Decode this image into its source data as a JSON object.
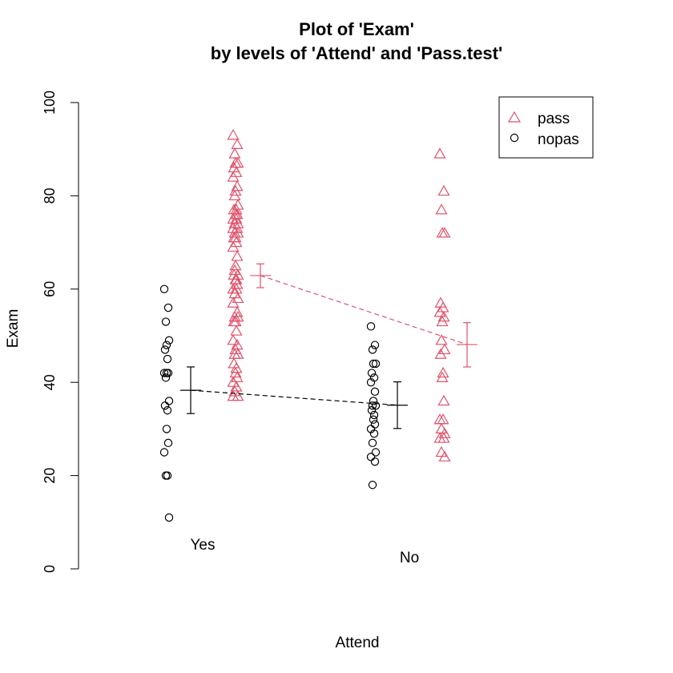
{
  "chart_data": {
    "type": "scatter",
    "title_line1": "Plot of 'Exam'",
    "title_line2": "by levels of 'Attend' and 'Pass.test'",
    "xlabel": "Attend",
    "ylabel": "Exam",
    "ylim": [
      0,
      100
    ],
    "yticks": [
      "0",
      "20",
      "40",
      "60",
      "80",
      "100"
    ],
    "categories": [
      "Yes",
      "No"
    ],
    "series": [
      {
        "name": "pass",
        "color": "#DF536B",
        "marker": "triangle",
        "line": "dashed",
        "groups": {
          "Yes": {
            "mean": 62.9,
            "ci": [
              60.3,
              65.4
            ],
            "points": [
              93,
              91,
              89,
              87,
              87,
              86,
              85,
              84,
              82,
              81,
              80,
              78,
              77,
              77,
              76,
              76,
              75,
              75,
              74,
              74,
              73,
              73,
              72,
              72,
              71,
              71,
              70,
              69,
              67,
              65,
              64,
              63,
              63,
              62,
              62,
              61,
              60,
              60,
              59,
              58,
              57,
              55,
              54,
              54,
              53,
              53,
              51,
              49,
              48,
              47,
              46,
              46,
              44,
              43,
              42,
              41,
              40,
              39,
              38,
              37,
              37
            ]
          },
          "No": {
            "mean": 48.1,
            "ci": [
              43.3,
              52.8
            ],
            "points": [
              89,
              81,
              77,
              72,
              72,
              57,
              56,
              55,
              54,
              53,
              49,
              47,
              46,
              42,
              41,
              36,
              32,
              32,
              30,
              29,
              28,
              28,
              25,
              24
            ]
          }
        }
      },
      {
        "name": "nopas",
        "color": "#000000",
        "marker": "circle",
        "line": "dashed",
        "groups": {
          "Yes": {
            "mean": 38.3,
            "ci": [
              33.3,
              43.3
            ],
            "points": [
              60,
              56,
              53,
              49,
              48,
              47,
              45,
              42,
              42,
              42,
              41,
              36,
              35,
              34,
              30,
              27,
              25,
              20,
              20,
              11
            ]
          },
          "No": {
            "mean": 35.1,
            "ci": [
              30.1,
              40.1
            ],
            "points": [
              52,
              48,
              47,
              44,
              44,
              42,
              41,
              40,
              38,
              36,
              35,
              35,
              34,
              33,
              32,
              31,
              30,
              29,
              27,
              25,
              24,
              23,
              18
            ]
          }
        }
      }
    ],
    "legend": {
      "position": "top-right",
      "entries": [
        "pass",
        "nopas"
      ]
    }
  }
}
